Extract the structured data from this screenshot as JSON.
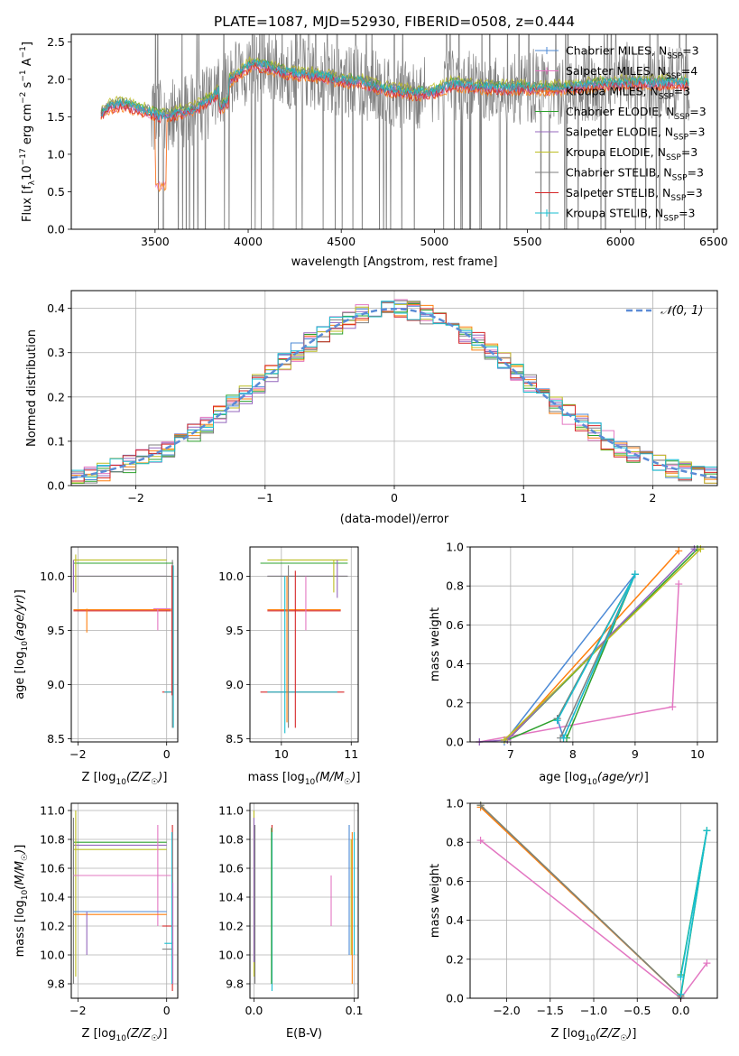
{
  "figure": {
    "title": "PLATE=1087, MJD=52930, FIBERID=0508, z=0.444"
  },
  "colors": {
    "models": [
      "#4c8ad6",
      "#e377c2",
      "#ff7f0e",
      "#2ca02c",
      "#9467bd",
      "#bcbd22",
      "#7f7f7f",
      "#d62728",
      "#17becf"
    ],
    "spectrum_data": "#808080",
    "normal_curve": "#5b8bd6",
    "grid": "#b0b0b0"
  },
  "chart_data": [
    {
      "id": "spectrum",
      "type": "line",
      "xlabel": "wavelength [Angstrom, rest frame]",
      "ylabel": "Flux [f_λ 10^-17 erg cm^-2 s^-1 A^-1]",
      "xlim": [
        3050,
        6520
      ],
      "ylim": [
        0.0,
        2.6
      ],
      "xticks": [
        3500,
        4000,
        4500,
        5000,
        5500,
        6000,
        6500
      ],
      "yticks": [
        0.0,
        0.5,
        1.0,
        1.5,
        2.0,
        2.5
      ],
      "grid": false,
      "legend": "top-right",
      "continuum_points": [
        [
          3210,
          1.55
        ],
        [
          3260,
          1.65
        ],
        [
          3330,
          1.68
        ],
        [
          3400,
          1.62
        ],
        [
          3470,
          1.58
        ],
        [
          3520,
          1.52
        ],
        [
          3600,
          1.55
        ],
        [
          3700,
          1.6
        ],
        [
          3800,
          1.75
        ],
        [
          3900,
          2.0
        ],
        [
          3960,
          2.1
        ],
        [
          4020,
          2.22
        ],
        [
          4100,
          2.18
        ],
        [
          4200,
          2.1
        ],
        [
          4300,
          2.08
        ],
        [
          4400,
          2.05
        ],
        [
          4500,
          2.0
        ],
        [
          4600,
          1.98
        ],
        [
          4700,
          1.9
        ],
        [
          4800,
          1.86
        ],
        [
          4900,
          1.82
        ],
        [
          5000,
          1.84
        ],
        [
          5100,
          1.95
        ],
        [
          5200,
          1.92
        ],
        [
          5300,
          1.9
        ],
        [
          5400,
          1.9
        ],
        [
          5500,
          1.9
        ],
        [
          5600,
          1.88
        ],
        [
          5700,
          1.9
        ],
        [
          5800,
          1.92
        ],
        [
          5900,
          1.95
        ],
        [
          6000,
          1.96
        ],
        [
          6100,
          1.97
        ],
        [
          6200,
          1.96
        ],
        [
          6300,
          1.97
        ],
        [
          6370,
          1.95
        ]
      ],
      "noisy_start": 3480,
      "series": [
        {
          "name": "Chabrier MILES, N_SSP=3",
          "label_main": "Chabrier MILES, N",
          "label_sub": "SSP",
          "label_tail": "=3",
          "marker": "+"
        },
        {
          "name": "Salpeter MILES, N_SSP=4",
          "label_main": "Salpeter MILES, N",
          "label_sub": "SSP",
          "label_tail": "=4",
          "marker": "+"
        },
        {
          "name": "Kroupa MILES, N_SSP=3",
          "label_main": "Kroupa MILES, N",
          "label_sub": "SSP",
          "label_tail": "=3",
          "marker": "+"
        },
        {
          "name": "Chabrier ELODIE, N_SSP=3",
          "label_main": "Chabrier ELODIE, N",
          "label_sub": "SSP",
          "label_tail": "=3",
          "marker": ""
        },
        {
          "name": "Salpeter ELODIE, N_SSP=3",
          "label_main": "Salpeter ELODIE, N",
          "label_sub": "SSP",
          "label_tail": "=3",
          "marker": ""
        },
        {
          "name": "Kroupa ELODIE, N_SSP=3",
          "label_main": "Kroupa ELODIE, N",
          "label_sub": "SSP",
          "label_tail": "=3",
          "marker": ""
        },
        {
          "name": "Chabrier STELIB, N_SSP=3",
          "label_main": "Chabrier STELIB, N",
          "label_sub": "SSP",
          "label_tail": "=3",
          "marker": ""
        },
        {
          "name": "Salpeter STELIB, N_SSP=3",
          "label_main": "Salpeter STELIB, N",
          "label_sub": "SSP",
          "label_tail": "=3",
          "marker": ""
        },
        {
          "name": "Kroupa STELIB, N_SSP=3",
          "label_main": "Kroupa STELIB, N",
          "label_sub": "SSP",
          "label_tail": "=3",
          "marker": "+"
        }
      ]
    },
    {
      "id": "residual-histogram",
      "type": "line",
      "xlabel": "(data-model)/error",
      "ylabel": "Normed distribution",
      "xlim": [
        -2.5,
        2.5
      ],
      "ylim": [
        0.0,
        0.44
      ],
      "xticks": [
        -2,
        -1,
        0,
        1,
        2
      ],
      "yticks": [
        0.0,
        0.1,
        0.2,
        0.3,
        0.4
      ],
      "grid": true,
      "legend": "top-right",
      "normal_label": "𝒩(0, 1)",
      "bin_width": 0.1
    },
    {
      "id": "age-vs-z",
      "type": "scatter",
      "xlabel_main": "Z [log",
      "xlabel_sub": "10",
      "xlabel_tail": "(Z/Z",
      "xlabel_sun": "☉",
      "xlabel_end": ")]",
      "ylabel": "age  [log10(age/yr)]",
      "xlim": [
        -2.15,
        0.25
      ],
      "ylim": [
        8.47,
        10.27
      ],
      "xticks": [
        -2,
        0
      ],
      "yticks": [
        8.5,
        9.0,
        9.5,
        10.0
      ],
      "grid": true
    },
    {
      "id": "age-vs-mass",
      "type": "scatter",
      "xlabel": "mass [log10(M/M☉)]",
      "ylabel": "",
      "xlim": [
        9.55,
        11.1
      ],
      "ylim": [
        8.47,
        10.27
      ],
      "xticks": [
        10,
        11
      ],
      "yticks": [
        8.5,
        9.0,
        9.5,
        10.0
      ],
      "grid": true
    },
    {
      "id": "mass-weight-vs-age",
      "type": "line",
      "xlabel": "age  [log10(age/yr)]",
      "ylabel": "mass weight",
      "xlim": [
        6.35,
        10.32
      ],
      "ylim": [
        0.0,
        1.0
      ],
      "xticks": [
        7,
        8,
        9,
        10
      ],
      "yticks": [
        0.0,
        0.2,
        0.4,
        0.6,
        0.8,
        1.0
      ],
      "grid": true,
      "series": [
        {
          "name": "Salpeter MILES",
          "points": [
            [
              6.5,
              0.0
            ],
            [
              9.6,
              0.18
            ],
            [
              9.7,
              0.81
            ]
          ]
        },
        {
          "name": "Chabrier ELODIE",
          "points": [
            [
              7.9,
              0.02
            ],
            [
              9.0,
              0.86
            ],
            [
              7.75,
              0.12
            ],
            [
              6.95,
              0.01
            ],
            [
              10.0,
              0.99
            ]
          ]
        },
        {
          "name": "Chabrier MILES",
          "points": [
            [
              6.9,
              0.0
            ],
            [
              9.0,
              0.86
            ],
            [
              7.85,
              0.02
            ],
            [
              7.75,
              0.12
            ]
          ]
        },
        {
          "name": "Kroupa MILES",
          "points": [
            [
              6.95,
              0.01
            ],
            [
              9.7,
              0.98
            ]
          ]
        },
        {
          "name": "Salpeter ELODIE",
          "points": [
            [
              6.5,
              0.0
            ],
            [
              6.95,
              0.01
            ],
            [
              9.95,
              0.99
            ]
          ]
        },
        {
          "name": "Kroupa ELODIE",
          "points": [
            [
              6.9,
              0.01
            ],
            [
              10.05,
              0.99
            ]
          ]
        },
        {
          "name": "Chabrier STELIB",
          "points": [
            [
              7.8,
              0.02
            ],
            [
              9.0,
              0.86
            ],
            [
              7.75,
              0.12
            ]
          ]
        },
        {
          "name": "Kroupa STELIB",
          "points": [
            [
              7.85,
              0.02
            ],
            [
              9.0,
              0.86
            ],
            [
              7.75,
              0.11
            ]
          ]
        }
      ]
    },
    {
      "id": "mass-vs-z",
      "type": "scatter",
      "xlabel": "Z [log10(Z/Z☉)]",
      "ylabel": "mass [log10(M/M☉)]",
      "xlim": [
        -2.15,
        0.25
      ],
      "ylim": [
        9.7,
        11.05
      ],
      "xticks": [
        -2,
        0
      ],
      "yticks": [
        9.8,
        10.0,
        10.2,
        10.4,
        10.6,
        10.8,
        11.0
      ],
      "grid": true
    },
    {
      "id": "mass-vs-ebv",
      "type": "scatter",
      "xlabel": "E(B-V)",
      "ylabel": "",
      "xlim": [
        -0.004,
        0.104
      ],
      "ylim": [
        9.7,
        11.05
      ],
      "xticks": [
        0.0,
        0.1
      ],
      "yticks": [
        9.8,
        10.0,
        10.2,
        10.4,
        10.6,
        10.8,
        11.0
      ],
      "grid": true
    },
    {
      "id": "mass-weight-vs-z",
      "type": "line",
      "xlabel": "Z [log10(Z/Z☉)]",
      "ylabel": "mass weight",
      "xlim": [
        -2.42,
        0.42
      ],
      "ylim": [
        0.0,
        1.0
      ],
      "xticks": [
        -2.0,
        -1.5,
        -1.0,
        -0.5,
        0.0
      ],
      "yticks": [
        0.0,
        0.2,
        0.4,
        0.6,
        0.8,
        1.0
      ],
      "grid": true,
      "series": [
        {
          "name": "Salpeter MILES",
          "points": [
            [
              -2.3,
              0.81
            ],
            [
              0.0,
              0.0
            ],
            [
              0.3,
              0.18
            ]
          ]
        },
        {
          "name": "Chabrier ELODIE",
          "points": [
            [
              -2.3,
              0.99
            ],
            [
              0.0,
              0.01
            ],
            [
              0.3,
              0.86
            ],
            [
              0.0,
              0.12
            ]
          ]
        },
        {
          "name": "Kroupa MILES",
          "points": [
            [
              -2.3,
              0.98
            ],
            [
              0.0,
              0.01
            ]
          ]
        },
        {
          "name": "Kroupa ELODIE",
          "points": [
            [
              -2.3,
              0.99
            ],
            [
              0.0,
              0.01
            ]
          ]
        },
        {
          "name": "Chabrier STELIB",
          "points": [
            [
              -2.3,
              0.99
            ],
            [
              0.0,
              0.01
            ]
          ]
        },
        {
          "name": "Kroupa STELIB",
          "points": [
            [
              0.0,
              0.02
            ],
            [
              0.3,
              0.86
            ],
            [
              0.0,
              0.11
            ]
          ]
        }
      ]
    }
  ]
}
